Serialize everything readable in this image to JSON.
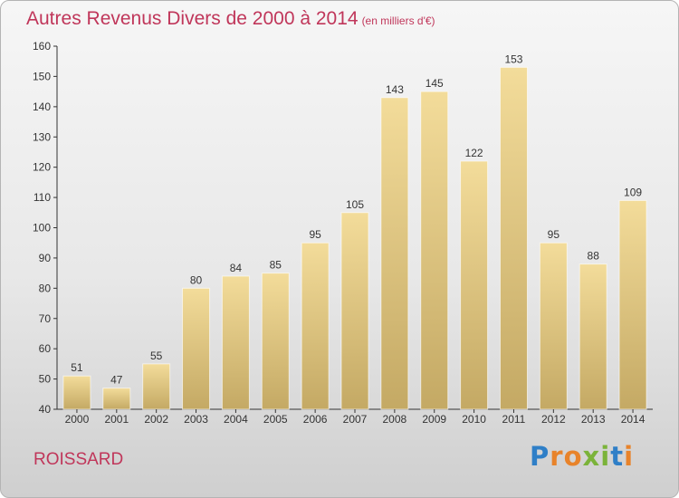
{
  "header": {
    "title": "Autres Revenus Divers de 2000 à 2014",
    "unit": "(en milliers d'€)"
  },
  "footer": {
    "town": "ROISSARD",
    "brand": "Proxiti"
  },
  "chart_data": {
    "type": "bar",
    "title": "Autres Revenus Divers de 2000 à 2014",
    "subtitle": "(en milliers d'€)",
    "xlabel": "",
    "ylabel": "",
    "categories": [
      "2000",
      "2001",
      "2002",
      "2003",
      "2004",
      "2005",
      "2006",
      "2007",
      "2008",
      "2009",
      "2010",
      "2011",
      "2012",
      "2013",
      "2014"
    ],
    "values": [
      51,
      47,
      55,
      80,
      84,
      85,
      95,
      105,
      143,
      145,
      122,
      153,
      95,
      88,
      109
    ],
    "ylim": [
      40,
      160
    ],
    "yticks": [
      40,
      50,
      60,
      70,
      80,
      90,
      100,
      110,
      120,
      130,
      140,
      150,
      160
    ],
    "grid": false,
    "colors": {
      "bar_top": "#f3dc9a",
      "bar_bottom": "#c4a964",
      "title": "#c0365a"
    },
    "legend": "none"
  }
}
